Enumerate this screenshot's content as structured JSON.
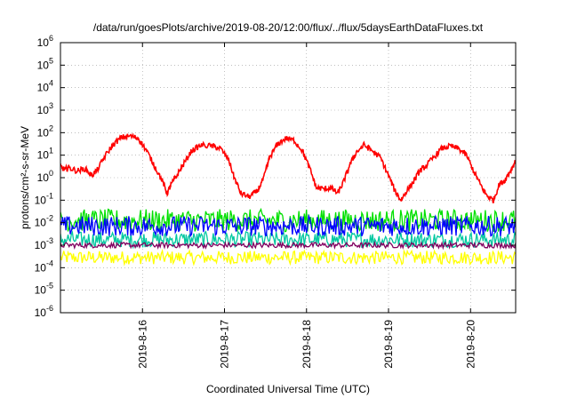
{
  "chart_data": {
    "type": "line",
    "title": "/data/run/goesPlots/archive/2019-08-20/12:00/flux/../flux/5daysEarthDataFluxes.txt",
    "xlabel": "Coordinated Universal Time (UTC)",
    "ylabel": "protons/cm²-s-sr-MeV",
    "y_scale": "log",
    "ylim": [
      1e-06,
      1000000.0
    ],
    "xlim_days": [
      15.0,
      20.55
    ],
    "y_ticks": [
      {
        "base": "10",
        "exp": "-6"
      },
      {
        "base": "10",
        "exp": "-5"
      },
      {
        "base": "10",
        "exp": "-4"
      },
      {
        "base": "10",
        "exp": "-3"
      },
      {
        "base": "10",
        "exp": "-2"
      },
      {
        "base": "10",
        "exp": "-1"
      },
      {
        "base": "10",
        "exp": "0"
      },
      {
        "base": "10",
        "exp": "1"
      },
      {
        "base": "10",
        "exp": "2"
      },
      {
        "base": "10",
        "exp": "3"
      },
      {
        "base": "10",
        "exp": "4"
      },
      {
        "base": "10",
        "exp": "5"
      },
      {
        "base": "10",
        "exp": "6"
      }
    ],
    "x_ticks": [
      {
        "day": 16,
        "label": "2019-8-16"
      },
      {
        "day": 17,
        "label": "2019-8-17"
      },
      {
        "day": 18,
        "label": "2019-8-18"
      },
      {
        "day": 19,
        "label": "2019-8-19"
      },
      {
        "day": 20,
        "label": "2019-8-20"
      }
    ],
    "grid": true,
    "series": [
      {
        "color": "#ffff00",
        "style": "noise",
        "level_log": -3.55,
        "spread_log": 0.3
      },
      {
        "color": "#00c8a0",
        "style": "noise",
        "level_log": -2.75,
        "spread_log": 0.35
      },
      {
        "color": "#800060",
        "style": "noise",
        "level_log": -3.0,
        "spread_log": 0.12
      },
      {
        "color": "#00e000",
        "style": "noise",
        "level_log": -1.9,
        "spread_log": 0.5
      },
      {
        "color": "#0000ff",
        "style": "noise",
        "level_log": -2.15,
        "spread_log": 0.45
      },
      {
        "color": "#ff0000",
        "style": "curve",
        "points": [
          [
            15.0,
            0.5
          ],
          [
            15.05,
            0.35
          ],
          [
            15.1,
            0.45
          ],
          [
            15.2,
            0.3
          ],
          [
            15.3,
            0.4
          ],
          [
            15.38,
            0.1
          ],
          [
            15.45,
            0.35
          ],
          [
            15.55,
            1.0
          ],
          [
            15.65,
            1.5
          ],
          [
            15.75,
            1.8
          ],
          [
            15.85,
            1.85
          ],
          [
            15.95,
            1.75
          ],
          [
            16.05,
            1.2
          ],
          [
            16.15,
            0.5
          ],
          [
            16.25,
            -0.2
          ],
          [
            16.3,
            -0.7
          ],
          [
            16.35,
            -0.3
          ],
          [
            16.42,
            0.1
          ],
          [
            16.5,
            0.6
          ],
          [
            16.6,
            1.2
          ],
          [
            16.72,
            1.45
          ],
          [
            16.85,
            1.4
          ],
          [
            16.95,
            1.3
          ],
          [
            17.05,
            0.8
          ],
          [
            17.12,
            0.0
          ],
          [
            17.2,
            -0.7
          ],
          [
            17.3,
            -0.85
          ],
          [
            17.4,
            -0.6
          ],
          [
            17.48,
            0.0
          ],
          [
            17.55,
            0.9
          ],
          [
            17.65,
            1.5
          ],
          [
            17.75,
            1.75
          ],
          [
            17.85,
            1.65
          ],
          [
            17.95,
            1.2
          ],
          [
            18.05,
            0.3
          ],
          [
            18.12,
            -0.45
          ],
          [
            18.22,
            -0.5
          ],
          [
            18.3,
            -0.45
          ],
          [
            18.38,
            -0.7
          ],
          [
            18.45,
            -0.2
          ],
          [
            18.52,
            0.5
          ],
          [
            18.6,
            1.1
          ],
          [
            18.7,
            1.45
          ],
          [
            18.8,
            1.2
          ],
          [
            18.9,
            0.9
          ],
          [
            19.0,
            0.1
          ],
          [
            19.08,
            -0.6
          ],
          [
            19.15,
            -1.0
          ],
          [
            19.22,
            -0.6
          ],
          [
            19.3,
            -0.2
          ],
          [
            19.38,
            0.3
          ],
          [
            19.45,
            0.5
          ],
          [
            19.55,
            0.9
          ],
          [
            19.65,
            1.3
          ],
          [
            19.75,
            1.4
          ],
          [
            19.85,
            1.3
          ],
          [
            19.95,
            1.0
          ],
          [
            20.05,
            0.2
          ],
          [
            20.12,
            -0.3
          ],
          [
            20.2,
            -0.8
          ],
          [
            20.28,
            -1.0
          ],
          [
            20.35,
            -0.3
          ],
          [
            20.42,
            -0.1
          ],
          [
            20.5,
            0.4
          ],
          [
            20.55,
            0.75
          ]
        ]
      }
    ]
  }
}
